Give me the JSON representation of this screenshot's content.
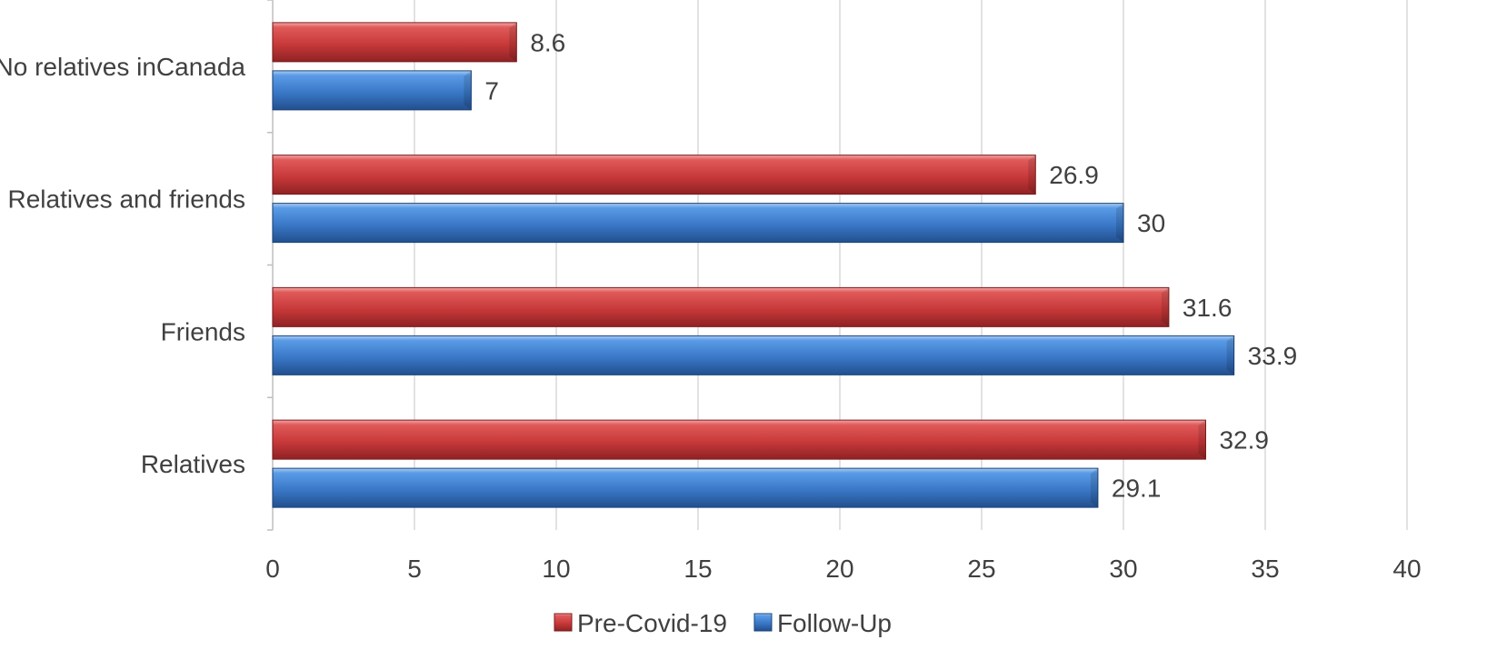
{
  "chart_data": {
    "type": "bar",
    "orientation": "horizontal",
    "categories": [
      "No relatives inCanada",
      "Relatives and friends",
      "Friends",
      "Relatives"
    ],
    "series": [
      {
        "name": "Pre-Covid-19",
        "values": [
          8.6,
          26.9,
          31.6,
          32.9
        ],
        "color": "#c0393b"
      },
      {
        "name": "Follow-Up",
        "values": [
          7,
          30,
          33.9,
          29.1
        ],
        "color": "#3a78c7"
      }
    ],
    "xlim": [
      0,
      40
    ],
    "xticks": [
      0,
      5,
      10,
      15,
      20,
      25,
      30,
      35,
      40
    ],
    "grid": "vertical",
    "legend": "bottom-center"
  }
}
